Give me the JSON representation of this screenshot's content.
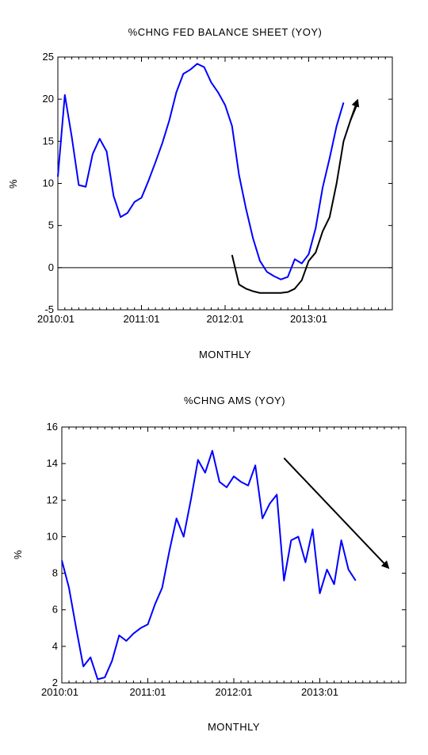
{
  "chart_data": [
    {
      "type": "line",
      "title": "%CHNG FED BALANCE SHEET (YOY)",
      "xlabel": "MONTHLY",
      "ylabel": "%",
      "ylim": [
        -5,
        25
      ],
      "yticks": [
        "-5",
        "0",
        "5",
        "10",
        "15",
        "20",
        "25"
      ],
      "xlim": [
        "2010-01",
        "2014-01"
      ],
      "xticks": [
        "2010:01",
        "2011:01",
        "2012:01",
        "2013:01"
      ],
      "grid": false,
      "series": [
        {
          "color": "#0000ff",
          "x": [
            "2010-01",
            "2010-02",
            "2010-03",
            "2010-04",
            "2010-05",
            "2010-06",
            "2010-07",
            "2010-08",
            "2010-09",
            "2010-10",
            "2010-11",
            "2010-12",
            "2011-01",
            "2011-02",
            "2011-03",
            "2011-04",
            "2011-05",
            "2011-06",
            "2011-07",
            "2011-08",
            "2011-09",
            "2011-10",
            "2011-11",
            "2011-12",
            "2012-01",
            "2012-02",
            "2012-03",
            "2012-04",
            "2012-05",
            "2012-06",
            "2012-07",
            "2012-08",
            "2012-09",
            "2012-10",
            "2012-11",
            "2012-12",
            "2013-01",
            "2013-02",
            "2013-03",
            "2013-04",
            "2013-05",
            "2013-06"
          ],
          "values": [
            10.8,
            20.5,
            15.5,
            9.8,
            9.6,
            13.5,
            15.3,
            13.8,
            8.5,
            6.0,
            6.5,
            7.8,
            8.3,
            10.3,
            12.5,
            14.8,
            17.5,
            20.8,
            23.0,
            23.5,
            24.2,
            23.8,
            22.0,
            20.8,
            19.3,
            16.8,
            11.0,
            7.0,
            3.5,
            0.8,
            -0.5,
            -1.0,
            -1.4,
            -1.1,
            1.0,
            0.5,
            1.6,
            4.7,
            9.5,
            13.0,
            16.8,
            19.6
          ]
        },
        {
          "color": "#000000",
          "x": [
            "2012-02",
            "2012-03",
            "2012-04",
            "2012-05",
            "2012-06",
            "2012-07",
            "2012-08",
            "2012-09",
            "2012-10",
            "2012-11",
            "2012-12",
            "2013-01",
            "2013-02",
            "2013-03",
            "2013-04",
            "2013-05",
            "2013-06",
            "2013-07",
            "2013-08"
          ],
          "values": [
            1.5,
            -2.0,
            -2.5,
            -2.8,
            -3.0,
            -3.0,
            -3.0,
            -3.0,
            -2.9,
            -2.5,
            -1.5,
            0.8,
            1.8,
            4.3,
            6.0,
            10.0,
            15.0,
            17.5,
            19.5
          ]
        }
      ],
      "annotations": [
        "arrow pointing up at end of black series"
      ]
    },
    {
      "type": "line",
      "title": "%CHNG AMS (YOY)",
      "xlabel": "MONTHLY",
      "ylabel": "%",
      "ylim": [
        2,
        16
      ],
      "yticks": [
        "2",
        "4",
        "6",
        "8",
        "10",
        "12",
        "14",
        "16"
      ],
      "xlim": [
        "2010-01",
        "2014-01"
      ],
      "xticks": [
        "2010:01",
        "2011:01",
        "2012:01",
        "2013:01"
      ],
      "grid": false,
      "series": [
        {
          "color": "#0000ff",
          "x": [
            "2010-01",
            "2010-02",
            "2010-03",
            "2010-04",
            "2010-05",
            "2010-06",
            "2010-07",
            "2010-08",
            "2010-09",
            "2010-10",
            "2010-11",
            "2010-12",
            "2011-01",
            "2011-02",
            "2011-03",
            "2011-04",
            "2011-05",
            "2011-06",
            "2011-07",
            "2011-08",
            "2011-09",
            "2011-10",
            "2011-11",
            "2011-12",
            "2012-01",
            "2012-02",
            "2012-03",
            "2012-04",
            "2012-05",
            "2012-06",
            "2012-07",
            "2012-08",
            "2012-09",
            "2012-10",
            "2012-11",
            "2012-12",
            "2013-01",
            "2013-02",
            "2013-03",
            "2013-04",
            "2013-05",
            "2013-06"
          ],
          "values": [
            8.7,
            7.2,
            5.0,
            2.9,
            3.4,
            2.2,
            2.3,
            3.2,
            4.6,
            4.3,
            4.7,
            5.0,
            5.2,
            6.3,
            7.2,
            9.2,
            11.0,
            10.0,
            12.0,
            14.2,
            13.5,
            14.7,
            13.0,
            12.7,
            13.3,
            13.0,
            12.8,
            13.9,
            11.0,
            11.8,
            12.3,
            7.6,
            9.8,
            10.0,
            8.6,
            10.4,
            6.9,
            8.2,
            7.4,
            9.8,
            8.2,
            7.6
          ]
        }
      ],
      "annotations": [
        "arrow pointing down-right indicating downward trend"
      ]
    }
  ]
}
